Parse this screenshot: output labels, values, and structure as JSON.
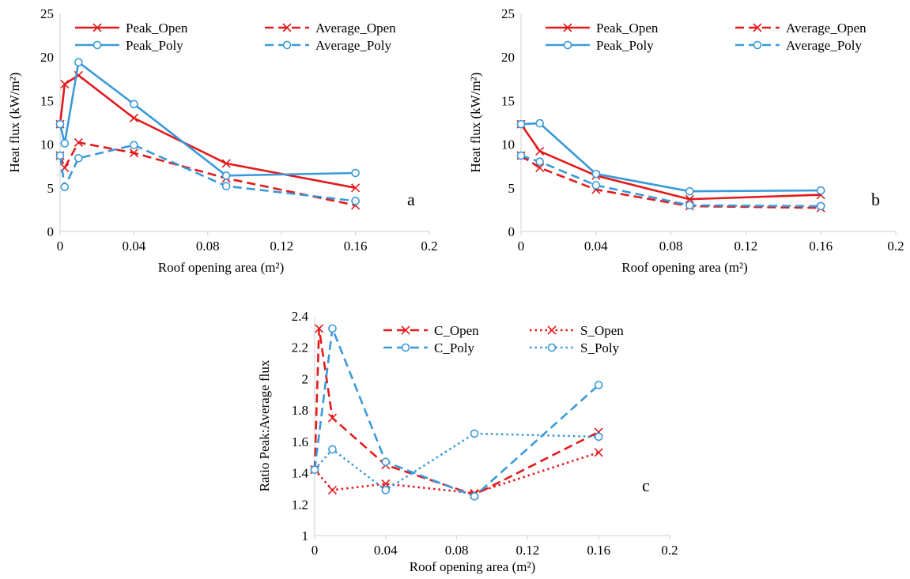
{
  "colors": {
    "open": "#e31a1c",
    "poly": "#3a9ad9",
    "axis": "#d9d9d9"
  },
  "chart_data": [
    {
      "type": "line",
      "panel_label": "a",
      "xlabel": "Roof opening area (m²)",
      "ylabel": "Heat flux (kW/m²)",
      "xlim": [
        0,
        0.2
      ],
      "ylim": [
        0,
        25
      ],
      "x_ticks": [
        "0",
        "0.04",
        "0.08",
        "0.12",
        "0.16",
        "0.2"
      ],
      "y_ticks": [
        "0",
        "5",
        "10",
        "15",
        "20",
        "25"
      ],
      "grid": false,
      "legend_position": "top",
      "series": [
        {
          "name": "Peak_Open",
          "color": "#e31a1c",
          "dash": "solid",
          "marker": "x",
          "x": [
            0,
            0.0025,
            0.01,
            0.04,
            0.09,
            0.16
          ],
          "y": [
            12.3,
            16.9,
            17.9,
            13.0,
            7.8,
            5.0
          ]
        },
        {
          "name": "Average_Open",
          "color": "#e31a1c",
          "dash": "dashed",
          "marker": "x",
          "x": [
            0,
            0.0025,
            0.01,
            0.04,
            0.09,
            0.16
          ],
          "y": [
            8.7,
            7.3,
            10.2,
            9.0,
            6.1,
            3.0
          ]
        },
        {
          "name": "Peak_Poly",
          "color": "#3a9ad9",
          "dash": "solid",
          "marker": "o",
          "x": [
            0,
            0.0025,
            0.01,
            0.04,
            0.09,
            0.16
          ],
          "y": [
            12.3,
            10.1,
            19.4,
            14.6,
            6.4,
            6.7
          ]
        },
        {
          "name": "Average_Poly",
          "color": "#3a9ad9",
          "dash": "dashed",
          "marker": "o",
          "x": [
            0,
            0.0025,
            0.01,
            0.04,
            0.09,
            0.16
          ],
          "y": [
            8.7,
            5.1,
            8.4,
            9.9,
            5.2,
            3.5
          ]
        }
      ]
    },
    {
      "type": "line",
      "panel_label": "b",
      "xlabel": "Roof opening area (m²)",
      "ylabel": "Heat flux (kW/m²)",
      "xlim": [
        0,
        0.2
      ],
      "ylim": [
        0,
        25
      ],
      "x_ticks": [
        "0",
        "0.04",
        "0.08",
        "0.12",
        "0.16",
        "0.2"
      ],
      "y_ticks": [
        "0",
        "5",
        "10",
        "15",
        "20",
        "25"
      ],
      "grid": false,
      "legend_position": "top",
      "series": [
        {
          "name": "Peak_Open",
          "color": "#e31a1c",
          "dash": "solid",
          "marker": "x",
          "x": [
            0,
            0.01,
            0.04,
            0.09,
            0.16
          ],
          "y": [
            12.3,
            9.2,
            6.4,
            3.7,
            4.2
          ]
        },
        {
          "name": "Average_Open",
          "color": "#e31a1c",
          "dash": "dashed",
          "marker": "x",
          "x": [
            0,
            0.01,
            0.04,
            0.09,
            0.16
          ],
          "y": [
            8.7,
            7.3,
            4.8,
            2.9,
            2.7
          ]
        },
        {
          "name": "Peak_Poly",
          "color": "#3a9ad9",
          "dash": "solid",
          "marker": "o",
          "x": [
            0,
            0.01,
            0.04,
            0.09,
            0.16
          ],
          "y": [
            12.3,
            12.4,
            6.6,
            4.6,
            4.7
          ]
        },
        {
          "name": "Average_Poly",
          "color": "#3a9ad9",
          "dash": "dashed",
          "marker": "o",
          "x": [
            0,
            0.01,
            0.04,
            0.09,
            0.16
          ],
          "y": [
            8.7,
            8.0,
            5.3,
            3.0,
            2.9
          ]
        }
      ]
    },
    {
      "type": "line",
      "panel_label": "c",
      "xlabel": "Roof opening area (m²)",
      "ylabel": "Ratio Peak:Average flux",
      "xlim": [
        0,
        0.2
      ],
      "ylim": [
        1,
        2.4
      ],
      "x_ticks": [
        "0",
        "0.04",
        "0.08",
        "0.12",
        "0.16",
        "0.2"
      ],
      "y_ticks": [
        "1",
        "1.2",
        "1.4",
        "1.6",
        "1.8",
        "2",
        "2.2",
        "2.4"
      ],
      "grid": false,
      "legend_position": "top",
      "series": [
        {
          "name": "C_Open",
          "color": "#e31a1c",
          "dash": "dashed",
          "marker": "x",
          "x": [
            0,
            0.0025,
            0.01,
            0.04,
            0.09,
            0.16
          ],
          "y": [
            1.42,
            2.32,
            1.75,
            1.45,
            1.26,
            1.66
          ]
        },
        {
          "name": "S_Open",
          "color": "#e31a1c",
          "dash": "dotted",
          "marker": "x",
          "x": [
            0,
            0.01,
            0.04,
            0.09,
            0.16
          ],
          "y": [
            1.42,
            1.29,
            1.33,
            1.27,
            1.53
          ]
        },
        {
          "name": "C_Poly",
          "color": "#3a9ad9",
          "dash": "dashed",
          "marker": "o",
          "x": [
            0,
            0.01,
            0.04,
            0.09,
            0.16
          ],
          "y": [
            1.42,
            2.32,
            1.47,
            1.25,
            1.96
          ]
        },
        {
          "name": "S_Poly",
          "color": "#3a9ad9",
          "dash": "dotted",
          "marker": "o",
          "x": [
            0,
            0.01,
            0.04,
            0.09,
            0.16
          ],
          "y": [
            1.42,
            1.55,
            1.29,
            1.65,
            1.63
          ]
        }
      ]
    }
  ]
}
